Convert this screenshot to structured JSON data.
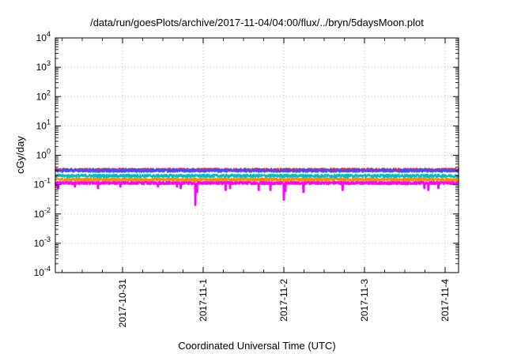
{
  "chart_data": {
    "type": "line",
    "title": "/data/run/goesPlots/archive/2017-11-04/04:00/flux/../bryn/5daysMoon.plot",
    "xlabel": "Coordinated Universal Time (UTC)",
    "ylabel": "cGy/day",
    "yscale": "log",
    "ylim": [
      0.0001,
      10000
    ],
    "y_ticks": [
      {
        "base": "10",
        "exp": "-4"
      },
      {
        "base": "10",
        "exp": "-3"
      },
      {
        "base": "10",
        "exp": "-2"
      },
      {
        "base": "10",
        "exp": "-1"
      },
      {
        "base": "10",
        "exp": "0"
      },
      {
        "base": "10",
        "exp": "1"
      },
      {
        "base": "10",
        "exp": "2"
      },
      {
        "base": "10",
        "exp": "3"
      },
      {
        "base": "10",
        "exp": "4"
      }
    ],
    "xlim": [
      "2017-10-30T04:00",
      "2017-11-04T04:00"
    ],
    "x_ticks": [
      {
        "value": "2017-10-31T00:00",
        "label": "2017-10-31"
      },
      {
        "value": "2017-11-01T00:00",
        "label": "2017-11-1"
      },
      {
        "value": "2017-11-02T00:00",
        "label": "2017-11-2"
      },
      {
        "value": "2017-11-03T00:00",
        "label": "2017-11-3"
      },
      {
        "value": "2017-11-04T00:00",
        "label": "2017-11-4"
      }
    ],
    "grid": true,
    "series": [
      {
        "color": "#ff00ff",
        "base": 0.115,
        "dips": [
          {
            "x": "2017-10-30T04:10",
            "y": 0.09
          },
          {
            "x": "2017-10-30T04:50",
            "y": 0.075
          },
          {
            "x": "2017-10-30T09:50",
            "y": 0.085
          },
          {
            "x": "2017-10-30T16:40",
            "y": 0.075
          },
          {
            "x": "2017-10-30T23:20",
            "y": 0.085
          },
          {
            "x": "2017-10-31T10:30",
            "y": 0.085
          },
          {
            "x": "2017-10-31T16:10",
            "y": 0.085
          },
          {
            "x": "2017-10-31T17:20",
            "y": 0.075
          },
          {
            "x": "2017-10-31T21:40",
            "y": 0.02
          },
          {
            "x": "2017-10-31T22:10",
            "y": 0.055
          },
          {
            "x": "2017-11-01T06:40",
            "y": 0.065
          },
          {
            "x": "2017-11-01T08:00",
            "y": 0.075
          },
          {
            "x": "2017-11-01T16:30",
            "y": 0.065
          },
          {
            "x": "2017-11-01T20:00",
            "y": 0.065
          },
          {
            "x": "2017-11-02T00:00",
            "y": 0.03
          },
          {
            "x": "2017-11-02T00:30",
            "y": 0.06
          },
          {
            "x": "2017-11-02T05:50",
            "y": 0.055
          },
          {
            "x": "2017-11-02T17:30",
            "y": 0.065
          },
          {
            "x": "2017-11-03T17:50",
            "y": 0.075
          },
          {
            "x": "2017-11-03T19:00",
            "y": 0.065
          },
          {
            "x": "2017-11-03T22:00",
            "y": 0.075
          }
        ]
      },
      {
        "color": "#ff8c00",
        "base": 0.15,
        "dips": [
          {
            "x": "2017-10-31T21:40",
            "y": 0.12
          },
          {
            "x": "2017-11-02T00:00",
            "y": 0.12
          }
        ]
      },
      {
        "color": "#00bfbf",
        "base": 0.2,
        "dips": []
      },
      {
        "color": "#ff2020",
        "base": 0.32,
        "dips": []
      },
      {
        "color": "#4a4aff",
        "base": 0.3,
        "dips": []
      }
    ]
  }
}
